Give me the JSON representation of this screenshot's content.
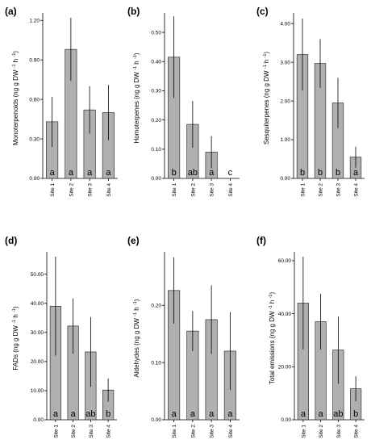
{
  "chart_data": [
    {
      "type": "bar",
      "panel_label": "(a)",
      "ylabel": "Monoterpenoids",
      "yunit": [
        "(ng g DW",
        "-1",
        "h",
        "-1",
        ")"
      ],
      "categories": [
        "Site 1",
        "Site 2",
        "Site 3",
        "Site 4"
      ],
      "values": [
        0.43,
        0.98,
        0.52,
        0.5
      ],
      "errors": [
        0.19,
        0.24,
        0.18,
        0.21
      ],
      "group_letters": [
        "a",
        "a",
        "a",
        "a"
      ],
      "ylim": [
        0,
        1.22
      ],
      "yticks": [
        0.0,
        0.3,
        0.6,
        0.9,
        1.2
      ],
      "ytick_labels": [
        "0.00",
        "0.30",
        "0.60",
        "0.90",
        "1.20"
      ]
    },
    {
      "type": "bar",
      "panel_label": "(b)",
      "ylabel": "Homoterpenes",
      "yunit": [
        "(ng g DW",
        "-1",
        "h",
        "-1",
        ")"
      ],
      "categories": [
        "Site 1",
        "Site 2",
        "Site 3",
        "Site 4"
      ],
      "values": [
        0.415,
        0.185,
        0.09,
        0
      ],
      "errors": [
        0.14,
        0.08,
        0.055,
        0
      ],
      "group_letters": [
        "b",
        "ab",
        "a",
        "c"
      ],
      "ylim": [
        0,
        0.55
      ],
      "yticks": [
        0.0,
        0.1,
        0.2,
        0.3,
        0.4,
        0.5
      ],
      "ytick_labels": [
        "0.00",
        "0.10",
        "0.20",
        "0.30",
        "0.40",
        "0.50"
      ]
    },
    {
      "type": "bar",
      "panel_label": "(c)",
      "ylabel": "Sesquiterpenes",
      "yunit": [
        "(ng g DW",
        "-1",
        "h",
        "-1",
        ")"
      ],
      "categories": [
        "Site 1",
        "Site 2",
        "Site 3",
        "Site 4"
      ],
      "values": [
        3.2,
        2.97,
        1.95,
        0.55
      ],
      "errors": [
        0.93,
        0.63,
        0.65,
        0.27
      ],
      "group_letters": [
        "b",
        "b",
        "b",
        "a"
      ],
      "ylim": [
        0,
        4.15
      ],
      "yticks": [
        0.0,
        1.0,
        2.0,
        3.0,
        4.0
      ],
      "ytick_labels": [
        "0.00",
        "1.00",
        "2.00",
        "3.00",
        "4.00"
      ]
    },
    {
      "type": "bar",
      "panel_label": "(d)",
      "ylabel": "FADs",
      "yunit": [
        "(ng g DW",
        "-1",
        "h",
        "-1",
        ")"
      ],
      "categories": [
        "Site 1",
        "Site 2",
        "Site 3",
        "Site 4"
      ],
      "values": [
        39,
        32.2,
        23.3,
        10.2
      ],
      "errors": [
        17,
        9.5,
        12,
        4
      ],
      "group_letters": [
        "a",
        "a",
        "ab",
        "b"
      ],
      "ylim": [
        0,
        56
      ],
      "yticks": [
        0.0,
        10.0,
        20.0,
        30.0,
        40.0,
        50.0
      ],
      "ytick_labels": [
        "0.00",
        "10.00",
        "20.00",
        "30.00",
        "40.00",
        "50.00"
      ]
    },
    {
      "type": "bar",
      "panel_label": "(e)",
      "ylabel": "Aldehydes",
      "yunit": [
        "(ng g DW",
        "-1",
        "h",
        "-1",
        ")"
      ],
      "categories": [
        "Site 1",
        "Site 2",
        "Site 3",
        "Site 4"
      ],
      "values": [
        0.226,
        0.155,
        0.175,
        0.12
      ],
      "errors": [
        0.058,
        0.035,
        0.06,
        0.068
      ],
      "group_letters": [
        "a",
        "a",
        "a",
        "a"
      ],
      "ylim": [
        0,
        0.285
      ],
      "yticks": [
        0.0,
        0.1,
        0.2
      ],
      "ytick_labels": [
        "0.00",
        "0.10",
        "0.20"
      ]
    },
    {
      "type": "bar",
      "panel_label": "(f)",
      "ylabel": "Total emissions",
      "yunit": [
        "(ng g DW",
        "-1",
        "h",
        "-1",
        ")"
      ],
      "categories": [
        "Site 1",
        "Site 2",
        "Site 3",
        "Site 4"
      ],
      "values": [
        44,
        37,
        26.3,
        11.7
      ],
      "errors": [
        17.5,
        10.5,
        12.7,
        4.7
      ],
      "group_letters": [
        "a",
        "a",
        "ab",
        "b"
      ],
      "ylim": [
        0,
        61.5
      ],
      "yticks": [
        0.0,
        20.0,
        40.0,
        60.0
      ],
      "ytick_labels": [
        "0.00",
        "20.00",
        "40.00",
        "60.00"
      ]
    }
  ],
  "colors": {
    "bar_fill": "#b0b0b0",
    "bar_stroke": "#333333",
    "axis": "#000000"
  }
}
